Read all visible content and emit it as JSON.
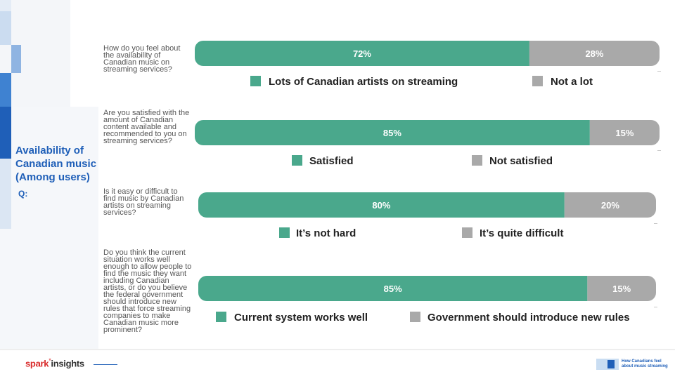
{
  "sidebar": {
    "title": "Availability of\nCanadian music\n(Among users)",
    "q_label": "Q:"
  },
  "colors": {
    "green": "#4aa88c",
    "grey": "#a9a9a9",
    "accent_blue": "#1f5fb8"
  },
  "chart_data": {
    "type": "bar",
    "stacked": true,
    "orientation": "horizontal",
    "items": [
      {
        "question": "How do you feel about the availability of Canadian music on streaming services?",
        "segments": [
          {
            "name": "Lots of Canadian artists on streaming",
            "value": 72,
            "label": "72%",
            "color": "#4aa88c"
          },
          {
            "name": "Not a lot",
            "value": 28,
            "label": "28%",
            "color": "#a9a9a9"
          }
        ]
      },
      {
        "question": "Are you satisfied with the amount of Canadian content available and recommended to you on streaming services?",
        "segments": [
          {
            "name": "Satisfied",
            "value": 85,
            "label": "85%",
            "color": "#4aa88c"
          },
          {
            "name": "Not satisfied",
            "value": 15,
            "label": "15%",
            "color": "#a9a9a9"
          }
        ]
      },
      {
        "question": "Is it easy or difficult to find music by Canadian artists on streaming services?",
        "segments": [
          {
            "name": "It’s not hard",
            "value": 80,
            "label": "80%",
            "color": "#4aa88c"
          },
          {
            "name": "It’s quite difficult",
            "value": 20,
            "label": "20%",
            "color": "#a9a9a9"
          }
        ]
      },
      {
        "question": "Do you think the current situation works well enough to allow people to find the music they want including Canadian artists, or do you believe the federal government should introduce new rules that force streaming companies to make Canadian music more prominent?",
        "segments": [
          {
            "name": "Current system works well",
            "value": 85,
            "label": "85%",
            "color": "#4aa88c"
          },
          {
            "name": "Government should introduce new rules",
            "value": 15,
            "label": "15%",
            "color": "#a9a9a9"
          }
        ]
      }
    ]
  },
  "footer": {
    "logo_spark": "spark",
    "logo_star": "*",
    "logo_insights": "insights",
    "badge_text": "How Canadians feel\nabout music streaming"
  }
}
